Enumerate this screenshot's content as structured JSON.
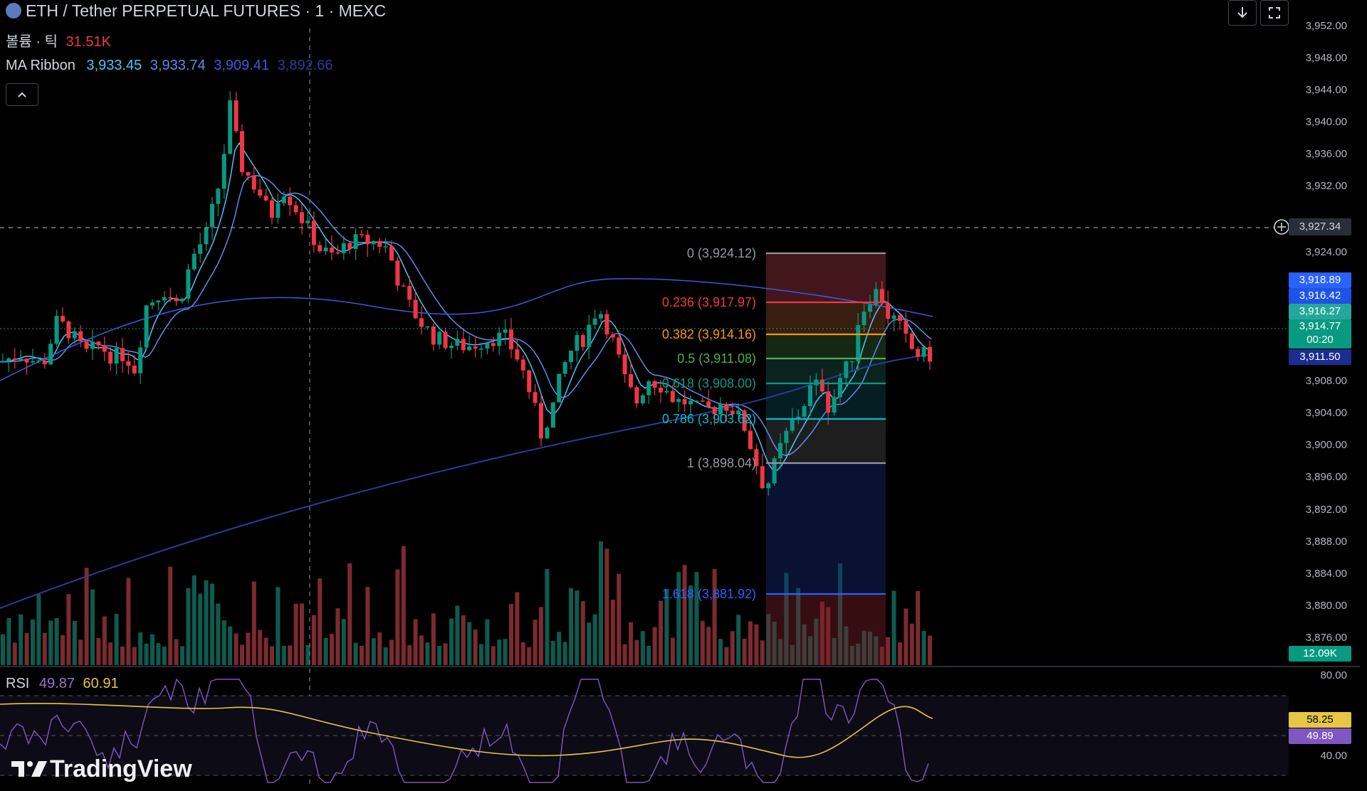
{
  "header": {
    "symbol_title": "ETH / Tether PERPETUAL FUTURES · 1 · MEXC",
    "volume_label": "볼륨 · 틱",
    "volume_value": "31.51K",
    "ma_ribbon_label": "MA Ribbon",
    "ma_values": [
      "3,933.45",
      "3,933.74",
      "3,909.41",
      "3,892.66"
    ],
    "ma_colors": [
      "#4fc3f7",
      "#5b8def",
      "#3b5bdb",
      "#2a3c99"
    ]
  },
  "toolbar": {
    "collapse_icon": "chevron-up-icon",
    "download_icon": "arrow-down-icon",
    "fullscreen_icon": "expand-icon"
  },
  "price_axis": {
    "ticks": [
      "3,952.00",
      "3,948.00",
      "3,944.00",
      "3,940.00",
      "3,936.00",
      "3,932.00",
      "3,924.00",
      "3,908.00",
      "3,904.00",
      "3,900.00",
      "3,896.00",
      "3,892.00",
      "3,888.00",
      "3,884.00",
      "3,880.00",
      "3,876.00"
    ],
    "crosshair_price": "3,927.34",
    "plus_icon": "plus-circle-icon",
    "labels": {
      "ma1": {
        "text": "3,918.89",
        "color": "#2962ff"
      },
      "ma2": {
        "text": "3,916.42",
        "color": "#1e53e5"
      },
      "ma3": {
        "text": "3,916.27",
        "color": "#26a69a"
      },
      "last_price": {
        "text": "3,914.77",
        "color": "#089981"
      },
      "countdown": "00:20",
      "ma4": {
        "text": "3,911.50",
        "color": "#1c2d8f"
      },
      "volume": {
        "text": "12.09K",
        "color": "#089981"
      }
    }
  },
  "fibonacci": [
    {
      "label": "0 (3,924.12)",
      "color": "#9598a1"
    },
    {
      "label": "0.236 (3,917.97)",
      "color": "#f23645"
    },
    {
      "label": "0.382 (3,914.16)",
      "color": "#ff9800"
    },
    {
      "label": "0.5 (3,911.08)",
      "color": "#4caf50"
    },
    {
      "label": "0.618 (3,908.00)",
      "color": "#089981"
    },
    {
      "label": "0.786 (3,903.62)",
      "color": "#00bcd4"
    },
    {
      "label": "1 (3,898.04)",
      "color": "#9598a1"
    },
    {
      "label": "1.618 (3,881.92)",
      "color": "#2962ff"
    }
  ],
  "rsi": {
    "label": "RSI",
    "value": "49.87",
    "ma_value": "60.91",
    "value_color": "#9575cd",
    "ma_color": "#e6c645",
    "axis_top": "80.00",
    "axis_bottom": "40.00",
    "rsi_pill": "49.89",
    "ma_pill": "58.25"
  },
  "watermark": {
    "logo_icon": "tradingview-logo-icon",
    "text": "TradingView"
  }
}
